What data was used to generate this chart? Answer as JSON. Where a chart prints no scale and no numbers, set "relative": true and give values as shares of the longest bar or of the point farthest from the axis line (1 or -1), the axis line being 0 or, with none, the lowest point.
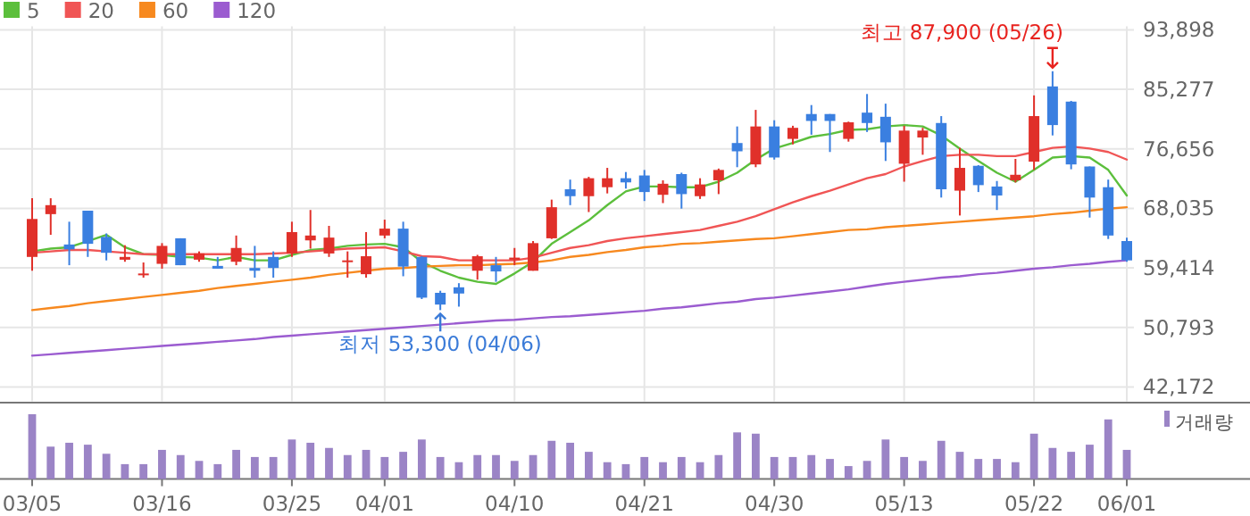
{
  "chart_data": [
    {
      "type": "candlestick",
      "categories": [
        "03/05",
        null,
        null,
        null,
        null,
        null,
        null,
        "03/16",
        null,
        null,
        null,
        null,
        null,
        null,
        "03/25",
        null,
        null,
        null,
        null,
        "04/01",
        null,
        null,
        null,
        null,
        null,
        null,
        "04/10",
        null,
        null,
        null,
        null,
        null,
        null,
        "04/21",
        null,
        null,
        null,
        null,
        null,
        null,
        "04/30",
        null,
        null,
        null,
        null,
        null,
        null,
        "05/13",
        null,
        null,
        null,
        null,
        null,
        null,
        "05/22",
        null,
        null,
        null,
        null,
        "06/01"
      ],
      "ohlc": [
        [
          61000,
          69500,
          59000,
          66500
        ],
        [
          67200,
          69500,
          64200,
          68500
        ],
        [
          62800,
          66100,
          59800,
          62100
        ],
        [
          67700,
          67700,
          61000,
          62900
        ],
        [
          63900,
          64400,
          60500,
          61600
        ],
        [
          60600,
          62700,
          60300,
          61000
        ],
        [
          58500,
          60200,
          58000,
          58600
        ],
        [
          60000,
          63000,
          59300,
          62600
        ],
        [
          63700,
          63700,
          59800,
          59800
        ],
        [
          60600,
          61800,
          60300,
          61500
        ],
        [
          59700,
          61000,
          59300,
          59300
        ],
        [
          60300,
          64100,
          59800,
          62300
        ],
        [
          59400,
          62600,
          58000,
          59000
        ],
        [
          61000,
          61800,
          58000,
          59400
        ],
        [
          61500,
          66100,
          61000,
          64600
        ],
        [
          63400,
          67800,
          62200,
          64100
        ],
        [
          61500,
          65500,
          61000,
          63800
        ],
        [
          60300,
          61800,
          58000,
          60500
        ],
        [
          58500,
          64600,
          58000,
          61100
        ],
        [
          64100,
          66400,
          63700,
          65100
        ],
        [
          65100,
          66100,
          58200,
          59600
        ],
        [
          61000,
          61100,
          54900,
          55100
        ],
        [
          55800,
          56100,
          53300,
          54100
        ],
        [
          56600,
          57200,
          53800,
          55700
        ],
        [
          59000,
          61300,
          57700,
          61100
        ],
        [
          59800,
          61000,
          57400,
          58900
        ],
        [
          60600,
          62300,
          59800,
          60900
        ],
        [
          59000,
          63300,
          59000,
          63000
        ],
        [
          63700,
          69300,
          63600,
          68200
        ],
        [
          70800,
          72200,
          68500,
          69800
        ],
        [
          69800,
          72600,
          67500,
          72400
        ],
        [
          71100,
          73900,
          70200,
          72400
        ],
        [
          72400,
          73300,
          70900,
          71800
        ],
        [
          72800,
          73600,
          69100,
          70400
        ],
        [
          70000,
          72100,
          68800,
          71600
        ],
        [
          73000,
          73200,
          68000,
          70100
        ],
        [
          69800,
          72400,
          69400,
          71500
        ],
        [
          72100,
          73800,
          70100,
          73600
        ],
        [
          77500,
          79900,
          74000,
          76300
        ],
        [
          74400,
          82300,
          74000,
          79900
        ],
        [
          79900,
          80800,
          75100,
          75400
        ],
        [
          78100,
          80000,
          77300,
          79700
        ],
        [
          81700,
          83000,
          78700,
          80700
        ],
        [
          81700,
          81700,
          76200,
          80700
        ],
        [
          78100,
          80600,
          77700,
          80500
        ],
        [
          81900,
          84600,
          79100,
          80400
        ],
        [
          81300,
          83200,
          74900,
          77600
        ],
        [
          74500,
          80000,
          71900,
          79300
        ],
        [
          78300,
          79700,
          75800,
          79300
        ],
        [
          80400,
          81400,
          69600,
          70800
        ],
        [
          70600,
          76800,
          67000,
          73900
        ],
        [
          74200,
          74300,
          70400,
          71400
        ],
        [
          71200,
          72000,
          67800,
          69900
        ],
        [
          72100,
          75200,
          71800,
          72900
        ],
        [
          74800,
          84400,
          73600,
          81400
        ],
        [
          85700,
          87900,
          78600,
          80100
        ],
        [
          83500,
          83600,
          73700,
          74400
        ],
        [
          74100,
          74100,
          66700,
          69600
        ],
        [
          71100,
          72200,
          63600,
          64100
        ],
        [
          63300,
          63800,
          60300,
          60500
        ]
      ],
      "colors": [
        "#e0302a",
        "#e0302a",
        "#3a7fe0",
        "#3a7fe0",
        "#3a7fe0",
        "#e0302a",
        "#e0302a",
        "#e0302a",
        "#3a7fe0",
        "#e0302a",
        "#3a7fe0",
        "#e0302a",
        "#3a7fe0",
        "#3a7fe0",
        "#e0302a",
        "#e0302a",
        "#e0302a",
        "#e0302a",
        "#e0302a",
        "#e0302a",
        "#3a7fe0",
        "#3a7fe0",
        "#3a7fe0",
        "#3a7fe0",
        "#e0302a",
        "#3a7fe0",
        "#e0302a",
        "#e0302a",
        "#e0302a",
        "#3a7fe0",
        "#e0302a",
        "#e0302a",
        "#3a7fe0",
        "#3a7fe0",
        "#e0302a",
        "#3a7fe0",
        "#e0302a",
        "#e0302a",
        "#3a7fe0",
        "#e0302a",
        "#3a7fe0",
        "#e0302a",
        "#3a7fe0",
        "#3a7fe0",
        "#e0302a",
        "#3a7fe0",
        "#3a7fe0",
        "#e0302a",
        "#e0302a",
        "#3a7fe0",
        "#e0302a",
        "#3a7fe0",
        "#3a7fe0",
        "#e0302a",
        "#e0302a",
        "#3a7fe0",
        "#3a7fe0",
        "#3a7fe0",
        "#3a7fe0",
        "#3a7fe0"
      ],
      "series": [
        {
          "name": "5",
          "type": "line",
          "color": "#5cbf3c",
          "values": [
            61800,
            62200,
            62400,
            63300,
            64200,
            62400,
            61400,
            61300,
            61000,
            60900,
            60500,
            61000,
            60500,
            60500,
            61300,
            62000,
            62200,
            62600,
            62800,
            62900,
            62400,
            60300,
            59000,
            58000,
            57400,
            57100,
            58600,
            60300,
            62900,
            64600,
            66300,
            68500,
            70500,
            71200,
            71200,
            71100,
            71100,
            71900,
            73200,
            75100,
            76700,
            77500,
            78400,
            78800,
            79400,
            79500,
            79900,
            80100,
            79900,
            78600,
            76700,
            74900,
            73200,
            71900,
            73600,
            75400,
            75600,
            75400,
            73600,
            69900
          ]
        },
        {
          "name": "20",
          "type": "line",
          "color": "#f05555",
          "values": [
            61600,
            61800,
            62000,
            62000,
            61800,
            61600,
            61400,
            61400,
            61400,
            61400,
            61400,
            61400,
            61400,
            61500,
            61600,
            61800,
            62000,
            62200,
            62300,
            62400,
            61800,
            61100,
            61000,
            60500,
            60500,
            60500,
            60500,
            60900,
            61600,
            62300,
            62700,
            63300,
            63700,
            64000,
            64300,
            64600,
            64900,
            65500,
            66100,
            66900,
            67900,
            68900,
            69800,
            70600,
            71500,
            72400,
            73000,
            74100,
            74900,
            75600,
            75800,
            75800,
            75600,
            75600,
            76200,
            76800,
            77000,
            76700,
            76200,
            75100
          ]
        },
        {
          "name": "60",
          "type": "line",
          "color": "#f7891f",
          "values": [
            53300,
            53600,
            53900,
            54300,
            54600,
            54900,
            55200,
            55500,
            55800,
            56100,
            56500,
            56800,
            57100,
            57400,
            57700,
            58000,
            58400,
            58700,
            59000,
            59300,
            59400,
            59600,
            59700,
            59800,
            59800,
            59900,
            60000,
            60200,
            60500,
            61000,
            61300,
            61700,
            62000,
            62400,
            62600,
            62900,
            63000,
            63200,
            63400,
            63600,
            63700,
            64000,
            64300,
            64600,
            64900,
            65000,
            65300,
            65500,
            65700,
            65900,
            66100,
            66300,
            66500,
            66700,
            66900,
            67200,
            67400,
            67700,
            68000,
            68200
          ]
        },
        {
          "name": "120",
          "type": "line",
          "color": "#9b5cd0",
          "values": [
            46700,
            46900,
            47100,
            47300,
            47500,
            47700,
            47900,
            48100,
            48300,
            48500,
            48700,
            48900,
            49100,
            49400,
            49600,
            49800,
            50000,
            50200,
            50400,
            50600,
            50800,
            51000,
            51200,
            51400,
            51600,
            51800,
            51900,
            52100,
            52300,
            52400,
            52600,
            52800,
            53000,
            53200,
            53500,
            53700,
            54000,
            54300,
            54500,
            54900,
            55100,
            55400,
            55700,
            56000,
            56300,
            56700,
            57100,
            57400,
            57700,
            58000,
            58200,
            58500,
            58700,
            59000,
            59300,
            59500,
            59800,
            60000,
            60300,
            60500
          ]
        }
      ],
      "ylim": [
        42172,
        93898
      ],
      "yticks": [
        {
          "value": 42172,
          "label": "42,172"
        },
        {
          "value": 50793,
          "label": "50,793"
        },
        {
          "value": 59414,
          "label": "59,414"
        },
        {
          "value": 68035,
          "label": "68,035"
        },
        {
          "value": 76656,
          "label": "76,656"
        },
        {
          "value": 85277,
          "label": "85,277"
        },
        {
          "value": 93898,
          "label": "93,898"
        }
      ],
      "annotations": [
        "최고 87,900 (05/26)",
        "최저 53,300 (04/06)"
      ],
      "grid": true,
      "legend": "top left"
    },
    {
      "type": "bar",
      "relative": true,
      "categories": [
        null,
        null,
        null,
        null,
        null,
        null,
        null,
        null,
        null,
        null,
        null,
        null,
        null,
        null,
        null,
        null,
        null,
        null,
        null,
        null,
        null,
        null,
        null,
        null,
        null,
        null,
        null,
        null,
        null,
        null,
        null,
        null,
        null,
        null,
        null,
        null,
        null,
        null,
        null,
        null,
        null,
        null,
        null,
        null,
        null,
        null,
        null,
        null,
        null,
        null,
        null,
        null,
        null,
        null,
        null,
        null,
        null,
        null,
        null,
        null
      ],
      "series": [
        {
          "name": "거래량",
          "color": "#9b84c6",
          "values": [
            1,
            0.5,
            0.56,
            0.53,
            0.39,
            0.23,
            0.23,
            0.45,
            0.37,
            0.28,
            0.23,
            0.45,
            0.34,
            0.34,
            0.61,
            0.56,
            0.48,
            0.37,
            0.45,
            0.34,
            0.42,
            0.61,
            0.34,
            0.26,
            0.37,
            0.37,
            0.28,
            0.37,
            0.59,
            0.56,
            0.42,
            0.26,
            0.23,
            0.34,
            0.26,
            0.34,
            0.26,
            0.37,
            0.72,
            0.7,
            0.34,
            0.34,
            0.37,
            0.31,
            0.2,
            0.28,
            0.61,
            0.34,
            0.28,
            0.59,
            0.42,
            0.31,
            0.31,
            0.26,
            0.7,
            0.48,
            0.42,
            0.53,
            0.92,
            0.45
          ]
        }
      ],
      "legend": "top right"
    }
  ]
}
